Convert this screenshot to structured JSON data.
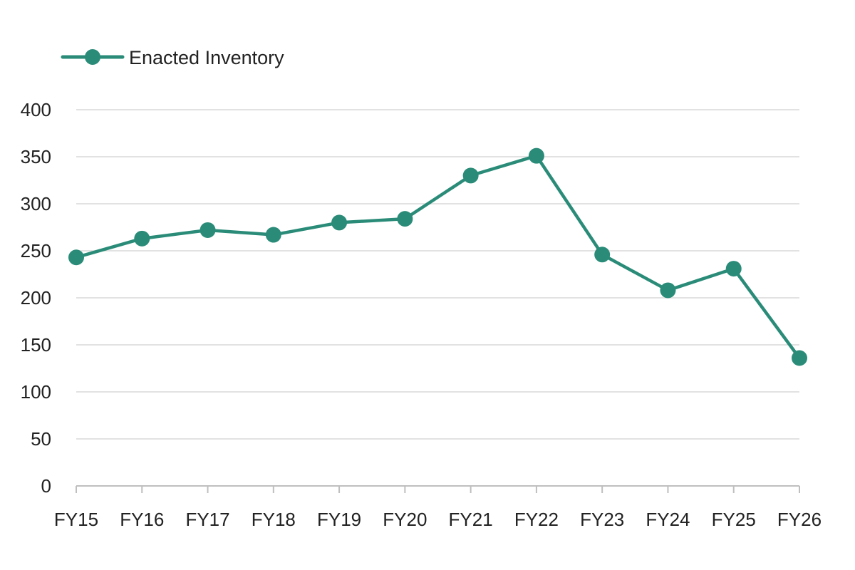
{
  "chart_data": {
    "type": "line",
    "title": "",
    "xlabel": "",
    "ylabel": "",
    "categories": [
      "FY15",
      "FY16",
      "FY17",
      "FY18",
      "FY19",
      "FY20",
      "FY21",
      "FY22",
      "FY23",
      "FY24",
      "FY25",
      "FY26"
    ],
    "series": [
      {
        "name": "Enacted Inventory",
        "color": "#2a8c78",
        "values": [
          243,
          263,
          272,
          267,
          280,
          284,
          330,
          351,
          246,
          208,
          231,
          136
        ]
      }
    ],
    "ylim": [
      0,
      400
    ],
    "yticks": [
      0,
      50,
      100,
      150,
      200,
      250,
      300,
      350,
      400
    ],
    "grid": "horizontal",
    "legend": "top-left"
  }
}
